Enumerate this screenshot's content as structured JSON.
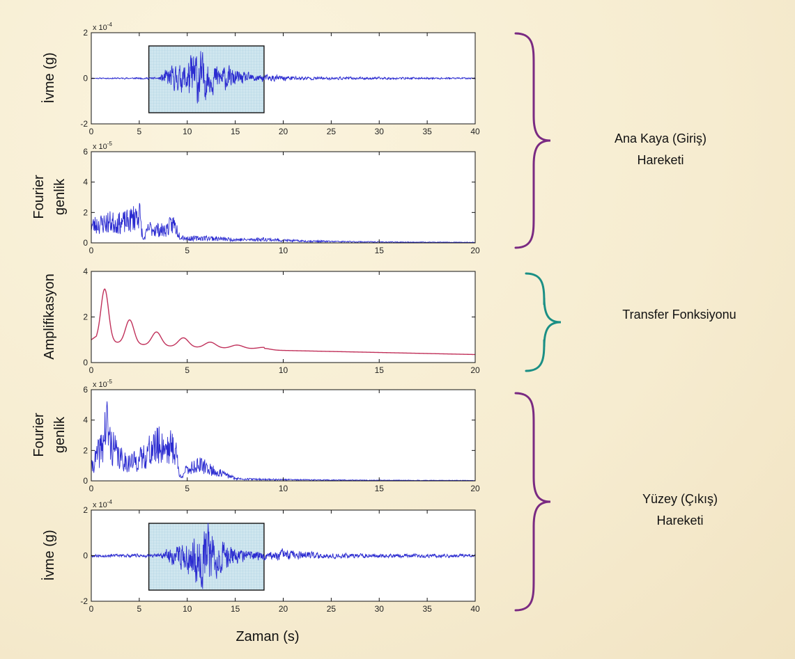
{
  "figure": {
    "xlabel": "Zaman (s)",
    "groups": [
      {
        "label_line1": "Ana Kaya (Giriş)",
        "label_line2": "Hareketi",
        "brace_color": "#7a2a82"
      },
      {
        "label_line1": "Transfer Fonksiyonu",
        "label_line2": "",
        "brace_color": "#1b8f85"
      },
      {
        "label_line1": "Yüzey (Çıkış)",
        "label_line2": "Hareketi",
        "brace_color": "#7a2a82"
      }
    ]
  },
  "chart_data": [
    {
      "type": "line",
      "id": "input-acceleration",
      "ylabel_lines": [
        "İvme (g)"
      ],
      "exponent_label": "x 10",
      "exponent_power": "-4",
      "xlim": [
        0,
        40
      ],
      "ylim": [
        -2,
        2
      ],
      "xticks": [
        0,
        5,
        10,
        15,
        20,
        25,
        30,
        35,
        40
      ],
      "yticks": [
        -2,
        0,
        2
      ],
      "highlight_window": [
        6,
        18
      ],
      "series": [
        {
          "color": "#2b2bd0",
          "signal": "accel",
          "seed": 11,
          "envelope": [
            [
              0,
              0.02
            ],
            [
              7,
              0.04
            ],
            [
              8,
              0.45
            ],
            [
              9.5,
              0.55
            ],
            [
              11,
              1.25
            ],
            [
              12.5,
              0.6
            ],
            [
              14,
              0.5
            ],
            [
              16,
              0.22
            ],
            [
              18,
              0.15
            ],
            [
              20,
              0.12
            ],
            [
              23,
              0.06
            ],
            [
              40,
              0.03
            ]
          ]
        }
      ]
    },
    {
      "type": "line",
      "id": "input-fourier",
      "ylabel_lines": [
        "Fourier",
        "genlik"
      ],
      "exponent_label": "x 10",
      "exponent_power": "-5",
      "xlim": [
        0,
        20
      ],
      "ylim": [
        0,
        6
      ],
      "xticks": [
        0,
        5,
        10,
        15,
        20
      ],
      "yticks": [
        0,
        2,
        4,
        6
      ],
      "series": [
        {
          "color": "#2b2bd0",
          "signal": "spectrum",
          "seed": 23,
          "envelope": [
            [
              0,
              1.4
            ],
            [
              1,
              1.7
            ],
            [
              1.5,
              1.6
            ],
            [
              2,
              1.8
            ],
            [
              2.5,
              2.5
            ],
            [
              2.7,
              0.2
            ],
            [
              3.0,
              1.2
            ],
            [
              3.8,
              1.0
            ],
            [
              4.3,
              1.6
            ],
            [
              4.6,
              0.6
            ],
            [
              5,
              0.35
            ],
            [
              6,
              0.4
            ],
            [
              7,
              0.3
            ],
            [
              8,
              0.25
            ],
            [
              9,
              0.3
            ],
            [
              10,
              0.2
            ],
            [
              11,
              0.15
            ],
            [
              13,
              0.1
            ],
            [
              16,
              0.06
            ],
            [
              20,
              0.04
            ]
          ]
        }
      ]
    },
    {
      "type": "line",
      "id": "transfer-function",
      "ylabel_lines": [
        "Amplifikasyon"
      ],
      "exponent_label": "",
      "exponent_power": "",
      "xlim": [
        0,
        20
      ],
      "ylim": [
        0,
        4
      ],
      "xticks": [
        0,
        5,
        10,
        15,
        20
      ],
      "yticks": [
        0,
        2,
        4
      ],
      "series": [
        {
          "color": "#c0305a",
          "signal": "transfer"
        }
      ]
    },
    {
      "type": "line",
      "id": "output-fourier",
      "ylabel_lines": [
        "Fourier",
        "genlik"
      ],
      "exponent_label": "x 10",
      "exponent_power": "-5",
      "xlim": [
        0,
        20
      ],
      "ylim": [
        0,
        6
      ],
      "xticks": [
        0,
        5,
        10,
        15,
        20
      ],
      "yticks": [
        0,
        2,
        4,
        6
      ],
      "series": [
        {
          "color": "#2b2bd0",
          "signal": "spectrum",
          "seed": 41,
          "envelope": [
            [
              0,
              1.0
            ],
            [
              0.6,
              3.0
            ],
            [
              0.8,
              4.8
            ],
            [
              1.0,
              3.0
            ],
            [
              1.5,
              1.8
            ],
            [
              2,
              1.5
            ],
            [
              2.5,
              1.7
            ],
            [
              3,
              2.4
            ],
            [
              3.5,
              2.9
            ],
            [
              4,
              2.8
            ],
            [
              4.4,
              2.6
            ],
            [
              4.6,
              0.3
            ],
            [
              5,
              0.9
            ],
            [
              5.5,
              1.3
            ],
            [
              6,
              1.1
            ],
            [
              6.5,
              0.7
            ],
            [
              7,
              0.5
            ],
            [
              7.5,
              0.2
            ],
            [
              8,
              0.15
            ],
            [
              9,
              0.12
            ],
            [
              10,
              0.1
            ],
            [
              12,
              0.07
            ],
            [
              14,
              0.05
            ],
            [
              20,
              0.03
            ]
          ]
        }
      ]
    },
    {
      "type": "line",
      "id": "output-acceleration",
      "ylabel_lines": [
        "İvme (g)"
      ],
      "exponent_label": "x 10",
      "exponent_power": "-4",
      "xlim": [
        0,
        40
      ],
      "ylim": [
        -2,
        2
      ],
      "xticks": [
        0,
        5,
        10,
        15,
        20,
        25,
        30,
        35,
        40
      ],
      "yticks": [
        -2,
        0,
        2
      ],
      "highlight_window": [
        6,
        18
      ],
      "series": [
        {
          "color": "#2b2bd0",
          "signal": "accel",
          "seed": 67,
          "envelope": [
            [
              0,
              0.05
            ],
            [
              7,
              0.08
            ],
            [
              8,
              0.3
            ],
            [
              9,
              0.4
            ],
            [
              10,
              0.7
            ],
            [
              11,
              1.05
            ],
            [
              12,
              1.5
            ],
            [
              13,
              0.8
            ],
            [
              14,
              0.6
            ],
            [
              15,
              0.3
            ],
            [
              17,
              0.2
            ],
            [
              19,
              0.15
            ],
            [
              20,
              0.25
            ],
            [
              21,
              0.2
            ],
            [
              24,
              0.1
            ],
            [
              40,
              0.06
            ]
          ]
        }
      ]
    }
  ]
}
